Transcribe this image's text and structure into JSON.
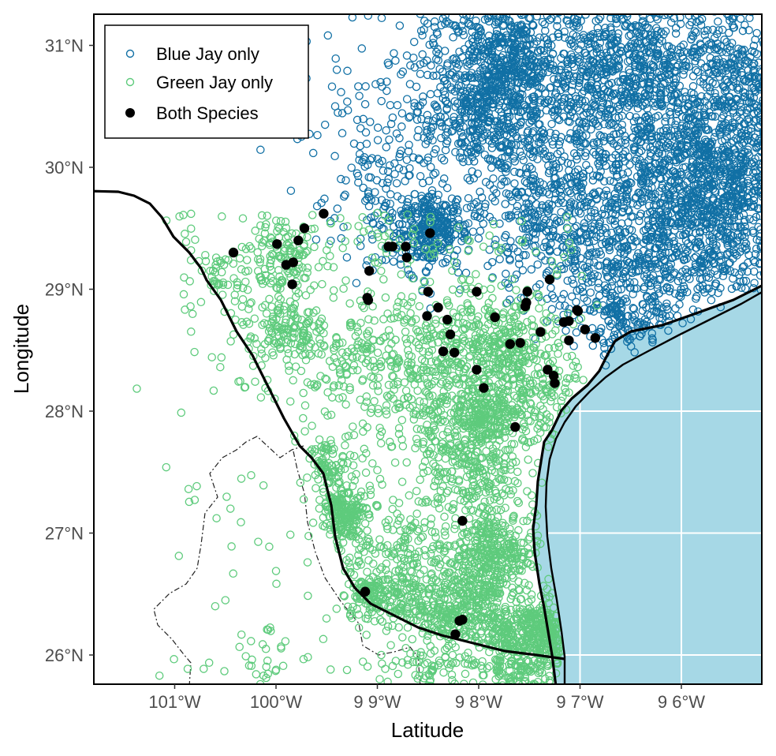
{
  "chart_data": {
    "type": "scatter",
    "xlabel": "Latitude",
    "ylabel": "Longitude",
    "xlim": [
      -101.8,
      -95.24
    ],
    "ylim": [
      25.77,
      31.27
    ],
    "x_ticks": [
      {
        "value": -101,
        "label": "101°W"
      },
      {
        "value": -100,
        "label": "100°W"
      },
      {
        "value": -99,
        "label": "9 9°W"
      },
      {
        "value": -98,
        "label": "9 8°W"
      },
      {
        "value": -97,
        "label": "9 7°W"
      },
      {
        "value": -96,
        "label": "9 6°W"
      }
    ],
    "y_ticks": [
      {
        "value": 31,
        "label": "31°N"
      },
      {
        "value": 30,
        "label": "30°N"
      },
      {
        "value": 29,
        "label": "29°N"
      },
      {
        "value": 28,
        "label": "28°N"
      },
      {
        "value": 27,
        "label": "27°N"
      },
      {
        "value": 26,
        "label": "26°N"
      }
    ],
    "grid": "white graticule over water only",
    "legend_position": "top-left",
    "colors": {
      "ocean": "#a6d8e6",
      "blue_jay": "#1170a5",
      "green_jay": "#5ecb7c",
      "both": "#000000",
      "coast": "#000000"
    },
    "legend": [
      {
        "label": "Blue Jay only",
        "marker": "open-circle",
        "color": "#1170a5"
      },
      {
        "label": "Green Jay only",
        "marker": "open-circle",
        "color": "#5ecb7c"
      },
      {
        "label": "Both Species",
        "marker": "filled-circle",
        "color": "#000000"
      }
    ],
    "series": [
      {
        "name": "Both Species",
        "points": [
          [
            -100.42,
            29.3
          ],
          [
            -99.99,
            29.37
          ],
          [
            -99.9,
            29.2
          ],
          [
            -99.83,
            29.22
          ],
          [
            -99.78,
            29.4
          ],
          [
            -99.84,
            29.04
          ],
          [
            -99.72,
            29.5
          ],
          [
            -99.53,
            29.62
          ],
          [
            -99.09,
            28.91
          ],
          [
            -99.1,
            28.93
          ],
          [
            -98.89,
            29.35
          ],
          [
            -98.85,
            29.35
          ],
          [
            -98.72,
            29.35
          ],
          [
            -98.71,
            29.26
          ],
          [
            -98.48,
            29.46
          ],
          [
            -99.08,
            29.15
          ],
          [
            -98.5,
            28.98
          ],
          [
            -98.51,
            28.78
          ],
          [
            -98.4,
            28.85
          ],
          [
            -98.31,
            28.75
          ],
          [
            -98.28,
            28.63
          ],
          [
            -98.35,
            28.49
          ],
          [
            -98.24,
            28.48
          ],
          [
            -98.02,
            28.98
          ],
          [
            -97.84,
            28.77
          ],
          [
            -98.02,
            28.34
          ],
          [
            -97.95,
            28.19
          ],
          [
            -97.69,
            28.55
          ],
          [
            -97.59,
            28.56
          ],
          [
            -97.52,
            28.98
          ],
          [
            -97.53,
            28.89
          ],
          [
            -97.54,
            28.86
          ],
          [
            -97.39,
            28.65
          ],
          [
            -97.3,
            29.08
          ],
          [
            -97.11,
            28.58
          ],
          [
            -97.16,
            28.73
          ],
          [
            -97.11,
            28.74
          ],
          [
            -97.02,
            28.82
          ],
          [
            -96.95,
            28.67
          ],
          [
            -96.85,
            28.6
          ],
          [
            -97.03,
            28.83
          ],
          [
            -97.32,
            28.34
          ],
          [
            -97.26,
            28.29
          ],
          [
            -97.25,
            28.23
          ],
          [
            -97.64,
            27.87
          ],
          [
            -98.16,
            27.1
          ],
          [
            -99.12,
            26.52
          ],
          [
            -98.19,
            26.28
          ],
          [
            -98.16,
            26.29
          ],
          [
            -98.23,
            26.17
          ]
        ]
      },
      {
        "name": "Blue Jay only",
        "points": [
          [
            -98.48,
            29.45
          ],
          [
            -97.75,
            30.27
          ],
          [
            -97.7,
            30.6
          ],
          [
            -96.5,
            30.6
          ],
          [
            -95.45,
            29.95
          ],
          [
            -95.4,
            29.7
          ],
          [
            -96.0,
            29.55
          ],
          [
            -96.6,
            29.3
          ],
          [
            -96.7,
            28.9
          ],
          [
            -97.2,
            29.8
          ],
          [
            -98.1,
            30.05
          ],
          [
            -99.2,
            29.95
          ],
          [
            -99.4,
            30.8
          ],
          [
            -95.7,
            31.0
          ],
          [
            -96.1,
            30.3
          ],
          [
            -97.4,
            29.5
          ]
        ]
      },
      {
        "name": "Green Jay only",
        "points": [
          [
            -97.8,
            28.55
          ],
          [
            -97.95,
            28.05
          ],
          [
            -98.1,
            27.55
          ],
          [
            -97.85,
            26.9
          ],
          [
            -98.4,
            26.25
          ],
          [
            -97.6,
            26.05
          ],
          [
            -97.35,
            26.2
          ],
          [
            -99.1,
            26.55
          ],
          [
            -99.4,
            27.2
          ],
          [
            -99.55,
            27.6
          ],
          [
            -98.9,
            26.9
          ],
          [
            -98.3,
            27.85
          ],
          [
            -98.8,
            28.22
          ],
          [
            -99.4,
            28.4
          ],
          [
            -99.9,
            28.75
          ],
          [
            -100.0,
            29.35
          ],
          [
            -100.4,
            28.75
          ],
          [
            -100.65,
            29.15
          ],
          [
            -98.6,
            28.65
          ],
          [
            -97.3,
            27.95
          ],
          [
            -100.1,
            26.05
          ],
          [
            -100.45,
            27.2
          ]
        ]
      }
    ]
  }
}
